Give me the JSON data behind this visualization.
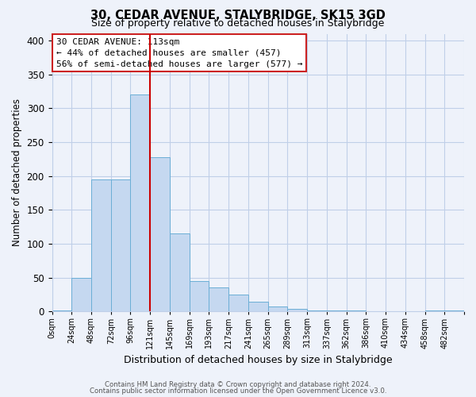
{
  "title": "30, CEDAR AVENUE, STALYBRIDGE, SK15 3GD",
  "subtitle": "Size of property relative to detached houses in Stalybridge",
  "xlabel": "Distribution of detached houses by size in Stalybridge",
  "ylabel": "Number of detached properties",
  "bar_labels": [
    "0sqm",
    "24sqm",
    "48sqm",
    "72sqm",
    "96sqm",
    "121sqm",
    "145sqm",
    "169sqm",
    "193sqm",
    "217sqm",
    "241sqm",
    "265sqm",
    "289sqm",
    "313sqm",
    "337sqm",
    "362sqm",
    "386sqm",
    "410sqm",
    "434sqm",
    "458sqm",
    "482sqm"
  ],
  "bar_values": [
    2,
    50,
    195,
    195,
    320,
    228,
    115,
    45,
    35,
    25,
    15,
    7,
    4,
    2,
    2,
    1,
    0,
    0,
    0,
    2,
    2
  ],
  "bar_color": "#c5d8f0",
  "bar_edge_color": "#6baed6",
  "vline_x": 5,
  "vline_color": "#cc0000",
  "annotation_title": "30 CEDAR AVENUE: 113sqm",
  "annotation_line1": "← 44% of detached houses are smaller (457)",
  "annotation_line2": "56% of semi-detached houses are larger (577) →",
  "footer1": "Contains HM Land Registry data © Crown copyright and database right 2024.",
  "footer2": "Contains public sector information licensed under the Open Government Licence v3.0.",
  "ylim": [
    0,
    410
  ],
  "yticks": [
    0,
    50,
    100,
    150,
    200,
    250,
    300,
    350,
    400
  ],
  "background_color": "#eef2fa",
  "plot_bg_color": "#eef2fa",
  "grid_color": "#c0cfe8"
}
